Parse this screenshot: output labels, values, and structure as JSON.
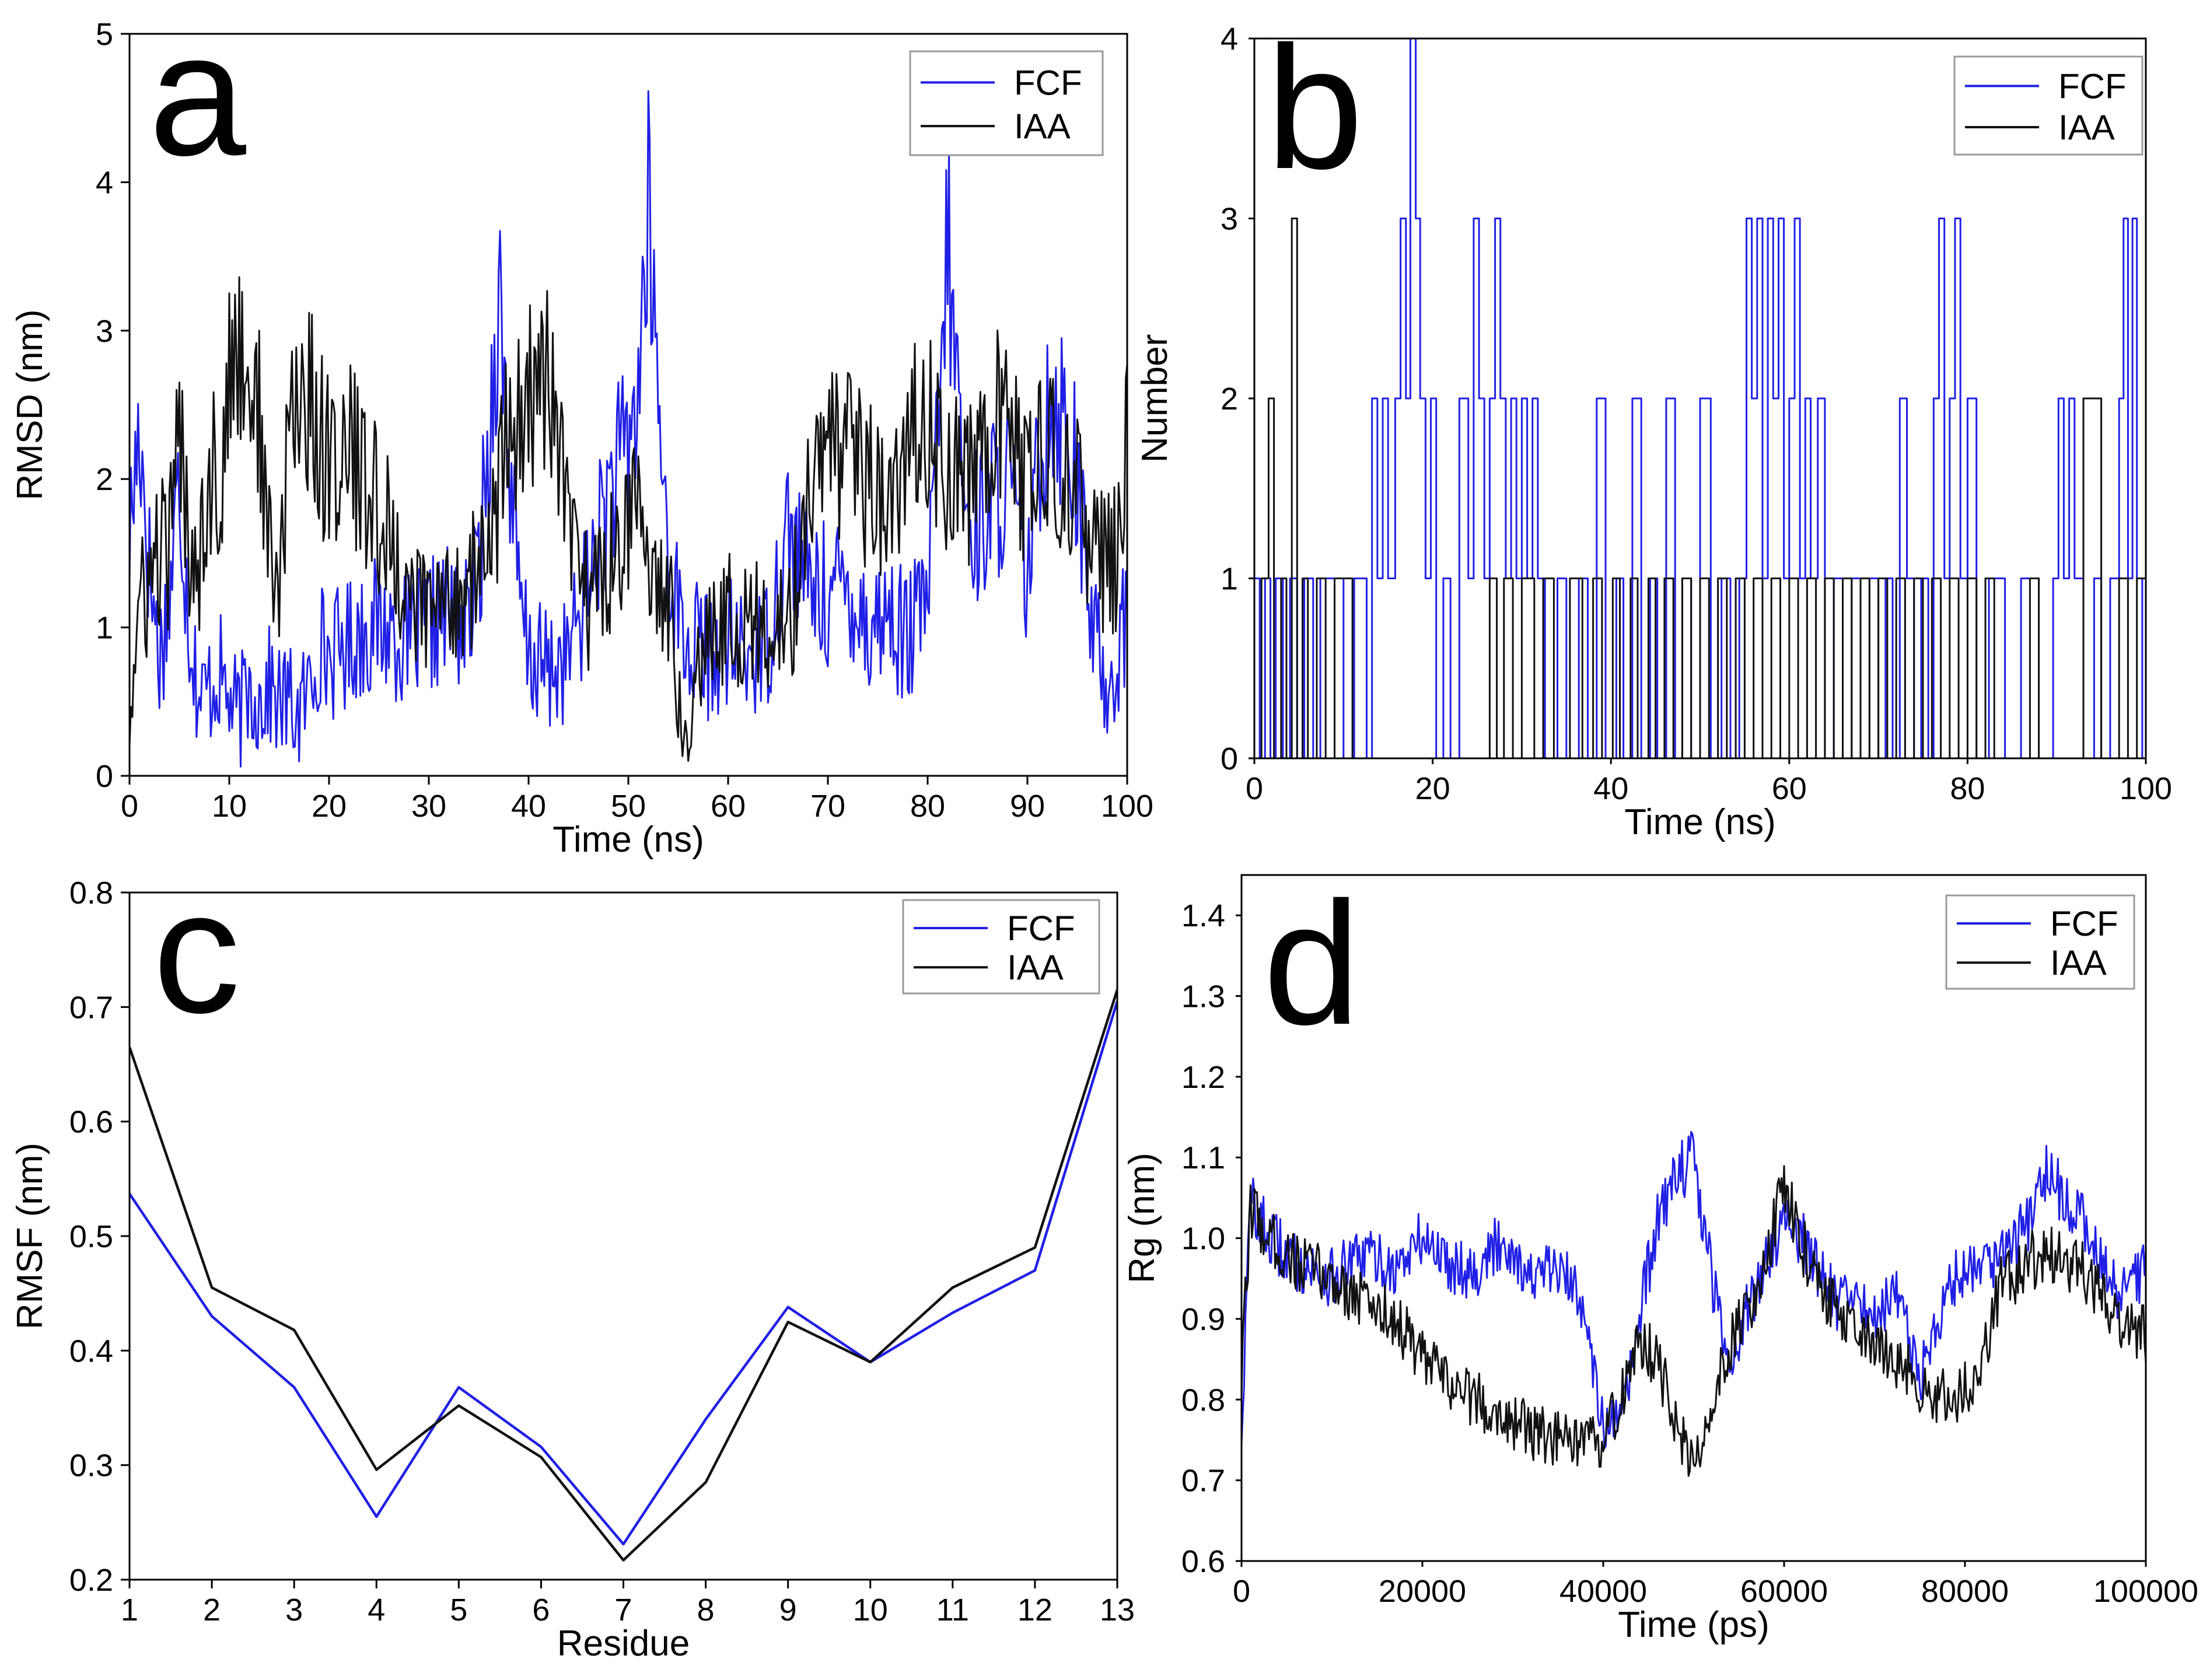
{
  "colors": {
    "FCF": "#1f1fe6",
    "IAA": "#111111"
  },
  "chart_data": [
    {
      "panel": "a",
      "type": "line",
      "xlabel": "Time (ns)",
      "ylabel": "RMSD (nm)",
      "xlim": [
        0,
        100
      ],
      "ylim": [
        0,
        5
      ],
      "xticks": [
        0,
        10,
        20,
        30,
        40,
        50,
        60,
        70,
        80,
        90,
        100
      ],
      "yticks": [
        0,
        1,
        2,
        3,
        4,
        5
      ],
      "legend": "top-right",
      "noisy": true,
      "series": [
        {
          "name": "FCF",
          "x": [
            0,
            1,
            2,
            3,
            4,
            5,
            6,
            7,
            8,
            9,
            10,
            11,
            12,
            13,
            14,
            15,
            16,
            17,
            18,
            19,
            20,
            22,
            24,
            26,
            28,
            30,
            32,
            34,
            35,
            36,
            37,
            38,
            39,
            40,
            42,
            44,
            46,
            48,
            50,
            51,
            52,
            53,
            54,
            55,
            56,
            57,
            58,
            60,
            62,
            64,
            65,
            66,
            67,
            68,
            70,
            72,
            74,
            76,
            78,
            80,
            81,
            82,
            83,
            84,
            86,
            88,
            90,
            92,
            94,
            95,
            96,
            97,
            98,
            99,
            100
          ],
          "y": [
            1.6,
            2.4,
            1.4,
            0.8,
            1.2,
            2.0,
            1.0,
            0.5,
            0.6,
            0.7,
            0.5,
            0.4,
            0.6,
            0.5,
            0.6,
            0.5,
            0.5,
            0.4,
            0.6,
            0.9,
            0.8,
            0.9,
            1.0,
            1.0,
            0.9,
            1.0,
            1.1,
            1.0,
            1.4,
            2.2,
            3.3,
            2.2,
            1.2,
            0.8,
            0.7,
            0.8,
            1.3,
            1.9,
            2.2,
            2.6,
            3.8,
            2.5,
            1.5,
            1.1,
            0.8,
            0.9,
            0.8,
            0.9,
            0.8,
            0.9,
            1.3,
            1.7,
            1.5,
            1.3,
            1.2,
            1.3,
            1.0,
            1.1,
            0.9,
            1.2,
            2.2,
            3.6,
            2.6,
            1.6,
            1.8,
            2.0,
            1.3,
            2.6,
            2.4,
            2.0,
            1.2,
            0.9,
            0.6,
            0.8,
            1.1
          ]
        },
        {
          "name": "IAA",
          "x": [
            0,
            1,
            2,
            3,
            4,
            5,
            6,
            7,
            8,
            9,
            10,
            11,
            12,
            13,
            14,
            15,
            16,
            17,
            18,
            20,
            22,
            24,
            26,
            28,
            30,
            32,
            34,
            36,
            38,
            40,
            42,
            44,
            46,
            48,
            50,
            52,
            54,
            55,
            56,
            57,
            58,
            60,
            62,
            64,
            66,
            68,
            70,
            72,
            74,
            76,
            78,
            80,
            82,
            84,
            86,
            88,
            90,
            92,
            94,
            96,
            98,
            99,
            100
          ],
          "y": [
            0.4,
            1.1,
            1.3,
            1.5,
            1.5,
            2.3,
            1.6,
            1.5,
            2.1,
            1.9,
            2.6,
            2.9,
            2.7,
            2.4,
            1.5,
            1.2,
            2.3,
            2.6,
            2.5,
            2.1,
            2.2,
            1.9,
            1.6,
            1.2,
            1.1,
            1.2,
            1.3,
            1.5,
            2.3,
            2.5,
            2.7,
            1.6,
            1.2,
            1.4,
            1.8,
            1.5,
            1.2,
            0.6,
            0.4,
            0.8,
            1.0,
            1.1,
            1.0,
            1.0,
            0.9,
            1.8,
            2.2,
            2.1,
            2.0,
            1.7,
            2.2,
            2.4,
            2.1,
            1.9,
            2.4,
            2.3,
            2.0,
            2.1,
            2.0,
            1.7,
            1.4,
            1.5,
            2.5
          ]
        }
      ]
    },
    {
      "panel": "b",
      "type": "line",
      "xlabel": "Time (ns)",
      "ylabel": "Number",
      "xlim": [
        0,
        100
      ],
      "ylim": [
        0,
        4
      ],
      "xticks": [
        0,
        20,
        40,
        60,
        80,
        100
      ],
      "yticks": [
        0,
        1,
        2,
        3,
        4
      ],
      "legend": "top-right",
      "step": true,
      "series": [
        {
          "name": "FCF",
          "x": [
            0,
            0.6,
            1.2,
            1.8,
            2.4,
            3.2,
            4.0,
            4.8,
            5.6,
            6.6,
            7.4,
            10.0,
            11.2,
            12.6,
            13.2,
            13.8,
            14.4,
            15.0,
            15.8,
            16.4,
            17.0,
            17.5,
            18.1,
            18.6,
            19.2,
            19.8,
            20.4,
            21.2,
            22.0,
            23.0,
            24.0,
            24.6,
            25.2,
            25.8,
            26.4,
            27.0,
            27.6,
            28.2,
            28.8,
            29.4,
            30.0,
            30.6,
            31.2,
            31.8,
            32.6,
            34.0,
            35.0,
            36.4,
            37.4,
            38.4,
            39.4,
            40.6,
            41.4,
            42.4,
            43.4,
            44.4,
            45.2,
            46.2,
            47.2,
            48.0,
            49.0,
            50.0,
            51.2,
            52.4,
            53.4,
            54.4,
            55.2,
            55.8,
            56.4,
            57.0,
            57.6,
            58.2,
            58.8,
            59.4,
            60.0,
            60.6,
            61.2,
            61.8,
            62.4,
            63.2,
            64.0,
            65.0,
            66.0,
            67.0,
            68.0,
            69.0,
            70.0,
            70.8,
            71.6,
            72.4,
            73.2,
            74.0,
            74.8,
            75.6,
            76.2,
            76.8,
            77.4,
            78.0,
            78.6,
            79.2,
            80.0,
            81.0,
            82.4,
            84.2,
            86.0,
            88.0,
            89.6,
            90.2,
            90.8,
            91.4,
            92.0,
            93.0,
            94.2,
            95.0,
            96.0,
            97.0,
            97.5,
            98.0,
            98.5,
            99.0,
            99.6,
            100
          ],
          "y": [
            1,
            0,
            1,
            0,
            1,
            0,
            1,
            0,
            1,
            0,
            1,
            0,
            1,
            0,
            2,
            1,
            2,
            1,
            2,
            3,
            2,
            4,
            3,
            2,
            1,
            2,
            0,
            1,
            0,
            2,
            1,
            3,
            2,
            1,
            2,
            3,
            2,
            1,
            2,
            1,
            2,
            1,
            2,
            1,
            0,
            1,
            0,
            1,
            0,
            2,
            0,
            1,
            0,
            2,
            0,
            1,
            0,
            2,
            0,
            1,
            0,
            2,
            0,
            1,
            0,
            1,
            3,
            2,
            3,
            1,
            3,
            2,
            3,
            1,
            2,
            3,
            1,
            2,
            1,
            2,
            0,
            1,
            0,
            1,
            0,
            1,
            0,
            1,
            0,
            2,
            1,
            0,
            1,
            0,
            2,
            3,
            1,
            2,
            3,
            1,
            2,
            0,
            1,
            0,
            1,
            0,
            1,
            2,
            1,
            2,
            1,
            0,
            1,
            0,
            1,
            2,
            3,
            1,
            3,
            1,
            0,
            1
          ]
        },
        {
          "name": "IAA",
          "x": [
            0,
            0.8,
            1.6,
            2.2,
            3.0,
            3.6,
            4.2,
            4.8,
            5.4,
            6.0,
            7.0,
            8.0,
            9.0,
            11.0,
            13.0,
            15.0,
            20.0,
            25.0,
            26.4,
            27.2,
            28.0,
            29.0,
            30.0,
            31.4,
            32.4,
            33.6,
            35.4,
            36.8,
            38.0,
            39.0,
            40.2,
            41.0,
            42.2,
            43.0,
            44.2,
            45.0,
            46.0,
            47.0,
            48.0,
            49.0,
            50.0,
            51.0,
            52.0,
            53.0,
            54.0,
            55.0,
            56.0,
            57.0,
            58.0,
            59.0,
            60.0,
            61.0,
            62.0,
            63.0,
            64.0,
            65.0,
            66.0,
            67.0,
            68.0,
            69.0,
            70.0,
            71.0,
            72.0,
            73.0,
            74.0,
            75.0,
            76.0,
            77.0,
            78.0,
            79.0,
            80.0,
            81.0,
            82.0,
            83.0,
            85.0,
            87.0,
            88.0,
            90.0,
            93.0,
            95.0,
            97.0,
            98.0,
            99.0,
            100
          ],
          "y": [
            0,
            1,
            2,
            0,
            1,
            0,
            3,
            0,
            1,
            0,
            1,
            0,
            1,
            0,
            0,
            0,
            0,
            0,
            1,
            0,
            1,
            0,
            1,
            0,
            1,
            0,
            1,
            0,
            1,
            0,
            1,
            0,
            1,
            0,
            1,
            0,
            1,
            0,
            1,
            0,
            1,
            0,
            1,
            0,
            1,
            0,
            1,
            0,
            1,
            0,
            1,
            0,
            1,
            0,
            1,
            0,
            1,
            0,
            1,
            0,
            1,
            0,
            1,
            0,
            1,
            0,
            1,
            0,
            1,
            0,
            1,
            0,
            1,
            0,
            0,
            1,
            0,
            0,
            2,
            0,
            1,
            0,
            1,
            0
          ]
        }
      ]
    },
    {
      "panel": "c",
      "type": "line",
      "xlabel": "Residue",
      "ylabel": "RMSF (nm)",
      "xlim": [
        1,
        13
      ],
      "ylim": [
        0.2,
        0.8
      ],
      "xticks": [
        1,
        2,
        3,
        4,
        5,
        6,
        7,
        8,
        9,
        10,
        11,
        12,
        13
      ],
      "yticks": [
        0.2,
        0.3,
        0.4,
        0.5,
        0.6,
        0.7,
        0.8
      ],
      "legend": "top-right",
      "series": [
        {
          "name": "FCF",
          "x": [
            1,
            2,
            3,
            4,
            5,
            6,
            7,
            8,
            9,
            10,
            11,
            12,
            13
          ],
          "y": [
            0.537,
            0.43,
            0.368,
            0.255,
            0.368,
            0.316,
            0.231,
            0.34,
            0.438,
            0.39,
            0.433,
            0.47,
            0.705
          ]
        },
        {
          "name": "IAA",
          "x": [
            1,
            2,
            3,
            4,
            5,
            6,
            7,
            8,
            9,
            10,
            11,
            12,
            13
          ],
          "y": [
            0.665,
            0.455,
            0.418,
            0.296,
            0.352,
            0.307,
            0.217,
            0.285,
            0.425,
            0.39,
            0.455,
            0.49,
            0.715
          ]
        }
      ]
    },
    {
      "panel": "d",
      "type": "line",
      "xlabel": "Time (ps)",
      "ylabel": "Rg (nm)",
      "xlim": [
        0,
        100000
      ],
      "ylim": [
        0.6,
        1.45
      ],
      "xticks": [
        0,
        20000,
        40000,
        60000,
        80000,
        100000
      ],
      "yticks": [
        0.6,
        0.7,
        0.8,
        0.9,
        1.0,
        1.1,
        1.2,
        1.3,
        1.4
      ],
      "legend": "top-right",
      "noisy": true,
      "series": [
        {
          "name": "FCF",
          "x": [
            0,
            1000,
            3000,
            6000,
            10000,
            14000,
            17000,
            20000,
            23000,
            26000,
            29000,
            32000,
            35000,
            38000,
            40000,
            42000,
            44000,
            46000,
            48000,
            50000,
            52000,
            54000,
            57000,
            60000,
            63000,
            66000,
            70000,
            73000,
            75000,
            78000,
            81000,
            84000,
            87000,
            89000,
            91000,
            93000,
            95000,
            97000,
            100000
          ],
          "y": [
            0.76,
            1.05,
            1.0,
            0.97,
            0.95,
            0.98,
            0.96,
            1.0,
            0.97,
            0.96,
            1.0,
            0.95,
            0.96,
            0.92,
            0.76,
            0.77,
            0.9,
            1.02,
            1.08,
            1.1,
            0.95,
            0.85,
            0.94,
            1.03,
            0.98,
            0.92,
            0.91,
            0.93,
            0.82,
            0.94,
            0.97,
            0.98,
            1.02,
            1.08,
            1.05,
            1.02,
            0.98,
            0.93,
            0.96
          ]
        },
        {
          "name": "IAA",
          "x": [
            0,
            1000,
            3000,
            6000,
            10000,
            14000,
            17000,
            20000,
            23000,
            26000,
            29000,
            32000,
            35000,
            38000,
            40000,
            42000,
            44000,
            46000,
            48000,
            50000,
            52000,
            54000,
            57000,
            60000,
            63000,
            66000,
            70000,
            73000,
            75000,
            78000,
            81000,
            84000,
            87000,
            89000,
            91000,
            93000,
            95000,
            97000,
            100000
          ],
          "y": [
            0.82,
            1.04,
            1.0,
            0.97,
            0.95,
            0.92,
            0.9,
            0.85,
            0.82,
            0.8,
            0.78,
            0.76,
            0.75,
            0.74,
            0.75,
            0.8,
            0.87,
            0.85,
            0.77,
            0.71,
            0.8,
            0.87,
            0.94,
            1.06,
            0.96,
            0.9,
            0.86,
            0.84,
            0.82,
            0.8,
            0.82,
            0.94,
            0.97,
            0.98,
            0.97,
            0.96,
            0.93,
            0.9,
            0.88
          ]
        }
      ]
    }
  ]
}
